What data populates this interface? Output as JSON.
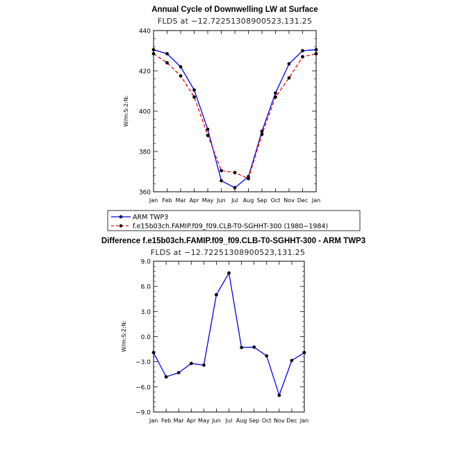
{
  "chart_data": [
    {
      "type": "line",
      "title": "Annual Cycle of Downwelling LW at Surface",
      "subtitle": "FLDS at −12.7225130890052​3,131.25",
      "ylabel": "W/m:S:2:N:",
      "xlabel": "",
      "categories": [
        "Jan",
        "Feb",
        "Mar",
        "Apr",
        "May",
        "Jun",
        "Jul",
        "Aug",
        "Sep",
        "Oct",
        "Nov",
        "Dec",
        "Jan"
      ],
      "ylim": [
        360,
        440
      ],
      "yticks": [
        "360",
        "380",
        "400",
        "420",
        "440"
      ],
      "series": [
        {
          "name": "ARM TWP3",
          "color": "#0000ff",
          "dash": "solid",
          "values": [
            430.5,
            428.5,
            422,
            410.5,
            391,
            365.5,
            362,
            367.5,
            390,
            409,
            423.5,
            430,
            430.5
          ]
        },
        {
          "name": "f.e15b03ch.FAMIP.f09_f09.CLB-T0-SGHHT-300 (1980−1984)",
          "color": "#ff0000",
          "dash": "dashed",
          "values": [
            428.5,
            424,
            417.5,
            407,
            388,
            370.5,
            369.5,
            366.5,
            388.5,
            407,
            416.5,
            427,
            428.5
          ]
        }
      ]
    },
    {
      "type": "line",
      "title": "Difference f.e15b03ch.FAMIP.f09_f09.CLB-T0-SGHHT-300 - ARM TWP3",
      "subtitle": "FLDS at −12.7225130890052​3,131.25",
      "ylabel": "W/m:S:2:N:",
      "xlabel": "",
      "categories": [
        "Jan",
        "Feb",
        "Mar",
        "Apr",
        "May",
        "Jun",
        "Jul",
        "Aug",
        "Sep",
        "Oct",
        "Nov",
        "Dec",
        "Jan"
      ],
      "ylim": [
        -9,
        9
      ],
      "yticks": [
        "−9.0",
        "−6.0",
        "−3.0",
        "0.0",
        "3.0",
        "6.0",
        "9.0"
      ],
      "series": [
        {
          "name": "Difference",
          "color": "#0000ff",
          "dash": "solid",
          "values": [
            -1.9,
            -4.8,
            -4.3,
            -3.2,
            -3.4,
            5.0,
            7.6,
            -1.3,
            -1.25,
            -2.3,
            -7.0,
            -2.85,
            -1.9
          ]
        }
      ]
    }
  ]
}
